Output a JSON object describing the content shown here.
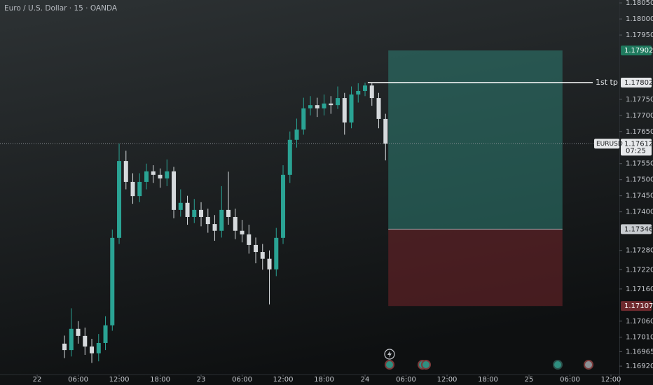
{
  "chart_data": {
    "type": "candlestick",
    "title": "Euro / U.S. Dollar · 15 · OANDA",
    "symbol": "EURUSD",
    "countdown": "07:25",
    "last_price": 1.17612,
    "up_color": "#2aa394",
    "down_color": "#d6dadd",
    "x": [
      4,
      5,
      6,
      7,
      8,
      9,
      10,
      11,
      12,
      13,
      14,
      15,
      16,
      17,
      18,
      19,
      20,
      21,
      22,
      23,
      24,
      25,
      26,
      27,
      28,
      29,
      30,
      31,
      32,
      33,
      34,
      35,
      36,
      37,
      38,
      39,
      40,
      41,
      42,
      43,
      44,
      45,
      46,
      47,
      48,
      49,
      50,
      51
    ],
    "open": [
      1.1699,
      1.1697,
      1.17036,
      1.17014,
      1.16981,
      1.1696,
      1.16992,
      1.17047,
      1.17319,
      1.17558,
      1.17493,
      1.17449,
      1.17493,
      1.17526,
      1.17515,
      1.17504,
      1.17526,
      1.17406,
      1.17428,
      1.17384,
      1.17406,
      1.17384,
      1.17362,
      1.17341,
      1.17406,
      1.17384,
      1.17341,
      1.1733,
      1.17297,
      1.17275,
      1.17254,
      1.17221,
      1.17319,
      1.17515,
      1.17624,
      1.17656,
      1.17722,
      1.17732,
      1.17722,
      1.17737,
      1.17732,
      1.17754,
      1.17678,
      1.17765,
      1.17776,
      1.17793,
      1.17754,
      1.17689
    ],
    "high": [
      1.17015,
      1.171,
      1.1706,
      1.1704,
      1.17005,
      1.1702,
      1.17075,
      1.17345,
      1.17612,
      1.1759,
      1.1752,
      1.1752,
      1.1755,
      1.17545,
      1.17535,
      1.17563,
      1.1754,
      1.1747,
      1.1745,
      1.1744,
      1.1743,
      1.1741,
      1.1739,
      1.1748,
      1.17525,
      1.1741,
      1.17375,
      1.1736,
      1.1732,
      1.173,
      1.1728,
      1.1735,
      1.17545,
      1.1765,
      1.1769,
      1.17755,
      1.1776,
      1.17755,
      1.17765,
      1.1776,
      1.1779,
      1.1777,
      1.1779,
      1.178,
      1.17802,
      1.178,
      1.1777,
      1.17705
    ],
    "low": [
      1.16945,
      1.1695,
      1.1699,
      1.16955,
      1.1693,
      1.16935,
      1.1697,
      1.1703,
      1.173,
      1.1747,
      1.17425,
      1.1743,
      1.1747,
      1.1749,
      1.17475,
      1.1748,
      1.1738,
      1.17385,
      1.1736,
      1.17365,
      1.17355,
      1.17335,
      1.1731,
      1.1732,
      1.1736,
      1.17315,
      1.17305,
      1.1727,
      1.1724,
      1.1722,
      1.17112,
      1.172,
      1.173,
      1.1749,
      1.176,
      1.1764,
      1.177,
      1.17695,
      1.177,
      1.17705,
      1.1772,
      1.1764,
      1.1766,
      1.1774,
      1.1776,
      1.1773,
      1.1766,
      1.1756
    ],
    "close": [
      1.1697,
      1.17036,
      1.17014,
      1.16981,
      1.1696,
      1.16992,
      1.17047,
      1.17319,
      1.17558,
      1.17493,
      1.17449,
      1.17493,
      1.17526,
      1.17515,
      1.17504,
      1.17526,
      1.17406,
      1.17428,
      1.17384,
      1.17406,
      1.17384,
      1.17362,
      1.17341,
      1.17406,
      1.17384,
      1.17341,
      1.1733,
      1.17297,
      1.17275,
      1.17254,
      1.17221,
      1.17319,
      1.17515,
      1.17624,
      1.17656,
      1.17722,
      1.17732,
      1.17722,
      1.17737,
      1.17732,
      1.17754,
      1.17678,
      1.17765,
      1.17776,
      1.17793,
      1.17754,
      1.17689,
      1.17612
    ],
    "position": {
      "target": 1.17902,
      "entry": 1.17346,
      "stop": 1.17107,
      "x_start": 51.4,
      "x_end": 76.9
    },
    "tp_line": {
      "label": "1st tp",
      "value": 1.17802,
      "x_start": 48.4
    },
    "xlim": [
      -5.44,
      85.23
    ],
    "ylim": [
      1.16894,
      1.18059
    ],
    "xticks": [
      {
        "value": 0,
        "label": "22"
      },
      {
        "value": 6,
        "label": "06:00"
      },
      {
        "value": 12,
        "label": "12:00"
      },
      {
        "value": 18,
        "label": "18:00"
      },
      {
        "value": 24,
        "label": "23"
      },
      {
        "value": 30,
        "label": "06:00"
      },
      {
        "value": 36,
        "label": "12:00"
      },
      {
        "value": 42,
        "label": "18:00"
      },
      {
        "value": 48,
        "label": "24"
      },
      {
        "value": 54,
        "label": "06:00"
      },
      {
        "value": 60,
        "label": "12:00"
      },
      {
        "value": 66,
        "label": "18:00"
      },
      {
        "value": 72,
        "label": "25"
      },
      {
        "value": 78,
        "label": "06:00"
      },
      {
        "value": 84,
        "label": "12:00"
      }
    ],
    "yticks": [
      {
        "value": 1.1805,
        "label": "1.18050"
      },
      {
        "value": 1.18,
        "label": "1.18000"
      },
      {
        "value": 1.1795,
        "label": "1.17950"
      },
      {
        "value": 1.1775,
        "label": "1.17750"
      },
      {
        "value": 1.177,
        "label": "1.17700"
      },
      {
        "value": 1.1765,
        "label": "1.17650"
      },
      {
        "value": 1.1755,
        "label": "1.17550"
      },
      {
        "value": 1.175,
        "label": "1.17500"
      },
      {
        "value": 1.1745,
        "label": "1.17450"
      },
      {
        "value": 1.174,
        "label": "1.17400"
      },
      {
        "value": 1.1728,
        "label": "1.17280"
      },
      {
        "value": 1.1722,
        "label": "1.17220"
      },
      {
        "value": 1.1716,
        "label": "1.17160"
      },
      {
        "value": 1.1706,
        "label": "1.17060"
      },
      {
        "value": 1.1701,
        "label": "1.17010"
      },
      1.16965,
      {
        "value": 1.1692,
        "label": "1.16920"
      }
    ],
    "grid": false
  }
}
